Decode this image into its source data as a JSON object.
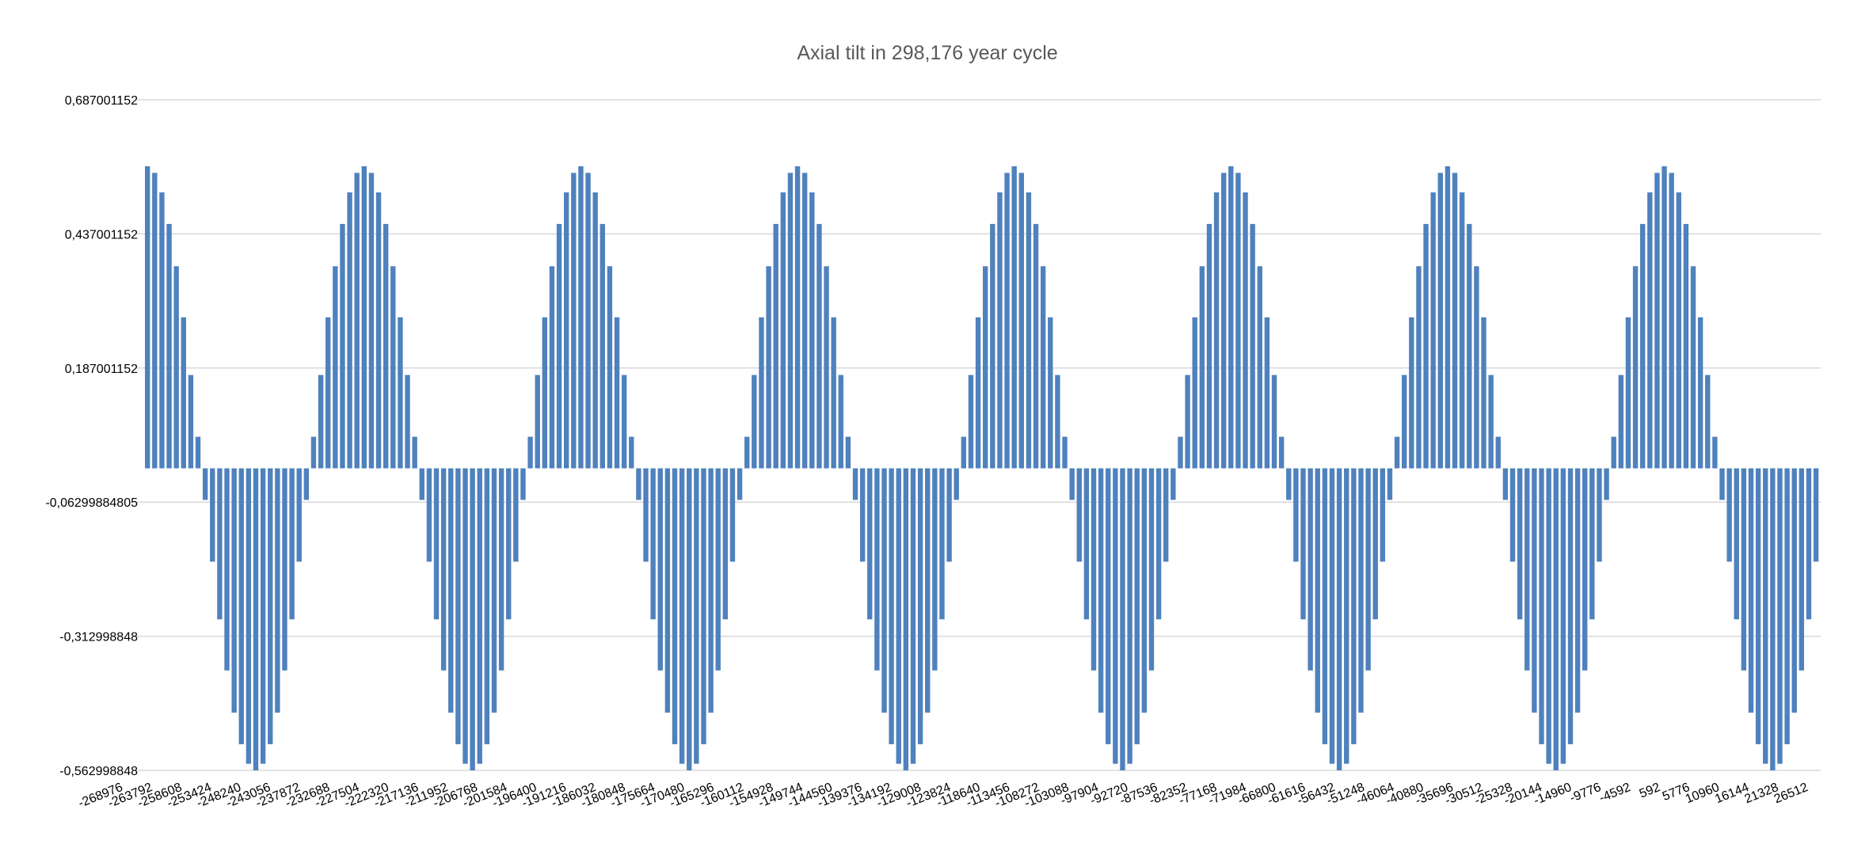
{
  "chart_data": {
    "type": "bar",
    "title": "Axial tilt in 298,176 year cycle",
    "xlabel": "",
    "ylabel": "",
    "ylim": [
      -0.562998848,
      0.687001152
    ],
    "y_ticks": [
      "0,687001152",
      "0,437001152",
      "0,187001152",
      "-0,06299884805",
      "-0,312998848",
      "-0,562998848"
    ],
    "y_tick_values": [
      0.687001152,
      0.437001152,
      0.187001152,
      -0.06299884805,
      -0.312998848,
      -0.562998848
    ],
    "x_ticks": [
      "-268976",
      "-263792",
      "-258608",
      "-253424",
      "-248240",
      "-243056",
      "-237872",
      "-232688",
      "-227504",
      "-222320",
      "-217136",
      "-211952",
      "-206768",
      "-201584",
      "-196400",
      "-191216",
      "-186032",
      "-180848",
      "-175664",
      "-170480",
      "-165296",
      "-160112",
      "-154928",
      "-149744",
      "-144560",
      "-139376",
      "-134192",
      "-129008",
      "-123824",
      "-118640",
      "-113456",
      "-108272",
      "-103088",
      "-97904",
      "-92720",
      "-87536",
      "-82352",
      "-77168",
      "-71984",
      "-66800",
      "-61616",
      "-56432",
      "-51248",
      "-46064",
      "-40880",
      "-35696",
      "-30512",
      "-25328",
      "-20144",
      "-14960",
      "-9776",
      "-4592",
      "592",
      "5776",
      "10960",
      "16144",
      "21328",
      "26512"
    ],
    "x": {
      "start": -268976,
      "step": 1296,
      "count": 232
    },
    "series_model": {
      "form": "amplitude*cos(2*pi*(x - start)/period)",
      "amplitude": 0.562998848,
      "period": 38880
    },
    "grid": true,
    "color": "#4f81bd"
  }
}
